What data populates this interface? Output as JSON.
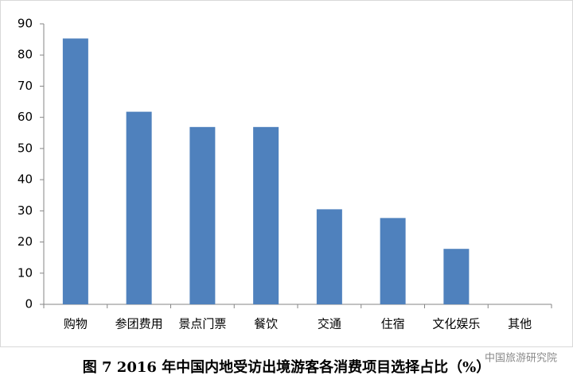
{
  "chart_data": {
    "type": "bar",
    "caption": "图 7 2016 年中国内地受访出境游客各消费项目选择占比（%）",
    "watermark": "中国旅游研究院",
    "categories": [
      "购物",
      "参团费用",
      "景点门票",
      "餐饮",
      "交通",
      "住宿",
      "文化娱乐",
      "其他"
    ],
    "values": [
      85.3,
      61.8,
      56.9,
      56.9,
      30.5,
      27.7,
      17.8,
      0
    ],
    "color": "#4f81bd",
    "ylim": [
      0,
      90
    ],
    "yticks": [
      0,
      10,
      20,
      30,
      40,
      50,
      60,
      70,
      80,
      90
    ],
    "grid": false
  }
}
